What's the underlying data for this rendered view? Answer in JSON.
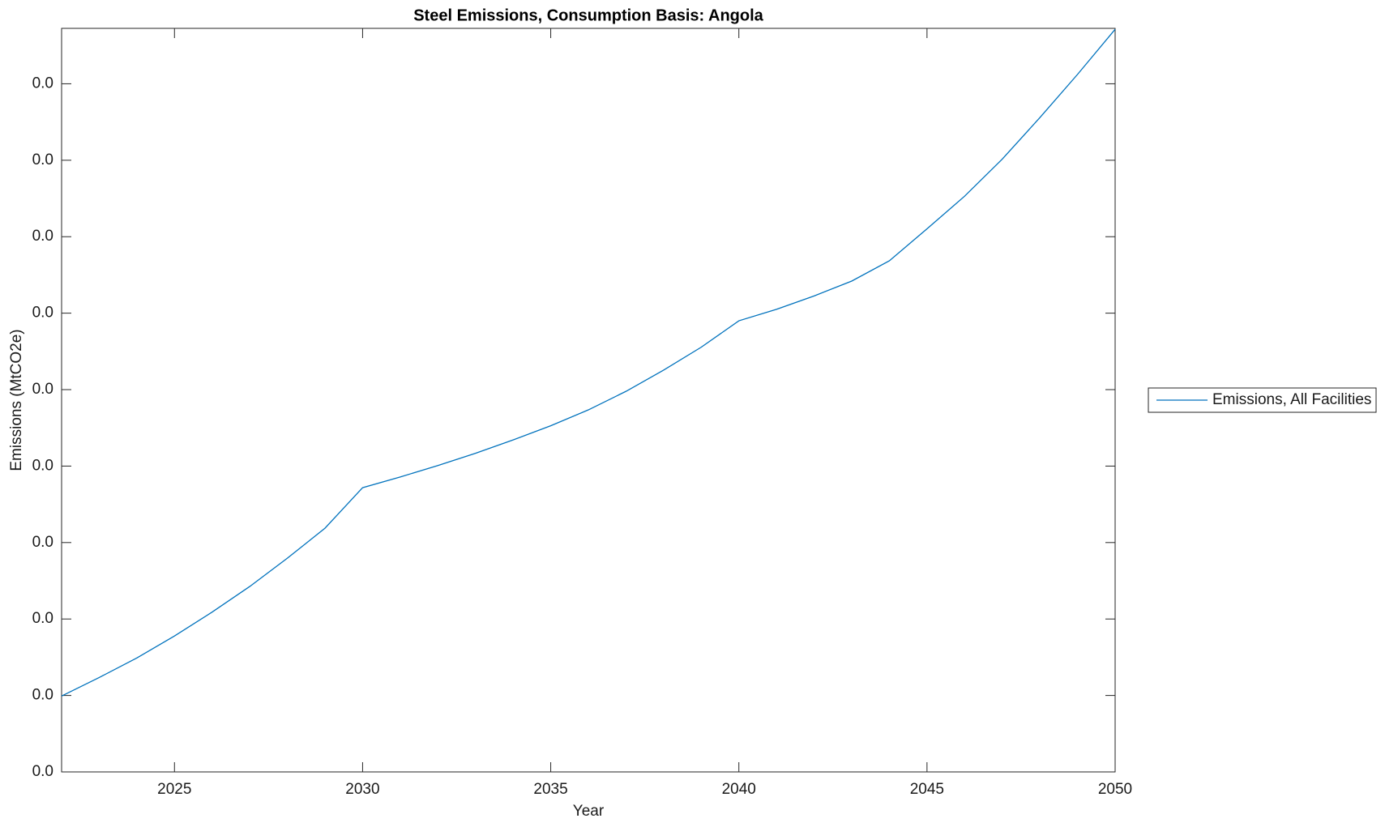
{
  "chart_data": {
    "type": "line",
    "title": "Steel Emissions, Consumption Basis: Angola",
    "x_label": "Year",
    "y_label": "Emissions (MtCO2e)",
    "x": [
      2022,
      2023,
      2024,
      2025,
      2026,
      2027,
      2028,
      2029,
      2030,
      2031,
      2032,
      2033,
      2034,
      2035,
      2036,
      2037,
      2038,
      2039,
      2040,
      2041,
      2042,
      2043,
      2044,
      2045,
      2046,
      2047,
      2048,
      2049,
      2050
    ],
    "series": [
      {
        "name": "Emissions, All Facilities",
        "color": "#0072bd",
        "values": [
          0.00397,
          0.00494,
          0.00596,
          0.00711,
          0.00836,
          0.0097,
          0.01118,
          0.01275,
          0.01487,
          0.01543,
          0.01603,
          0.01667,
          0.01737,
          0.01811,
          0.01894,
          0.01991,
          0.02102,
          0.02222,
          0.0236,
          0.0242,
          0.0249,
          0.02568,
          0.02674,
          0.02841,
          0.03012,
          0.03206,
          0.03423,
          0.03649,
          0.03885
        ]
      }
    ],
    "xlim": [
      2022,
      2050
    ],
    "xticks": [
      2025,
      2030,
      2035,
      2040,
      2045,
      2050
    ],
    "ylim": [
      0,
      0.0389
    ],
    "yticks": [
      {
        "value": 0,
        "label": "0.0"
      },
      {
        "value": 0.004,
        "label": "0.0"
      },
      {
        "value": 0.008,
        "label": "0.0"
      },
      {
        "value": 0.012,
        "label": "0.0"
      },
      {
        "value": 0.016,
        "label": "0.0"
      },
      {
        "value": 0.02,
        "label": "0.0"
      },
      {
        "value": 0.024,
        "label": "0.0"
      },
      {
        "value": 0.028,
        "label": "0.0"
      },
      {
        "value": 0.032,
        "label": "0.0"
      },
      {
        "value": 0.036,
        "label": "0.0"
      }
    ],
    "grid": false,
    "legend": "right"
  }
}
